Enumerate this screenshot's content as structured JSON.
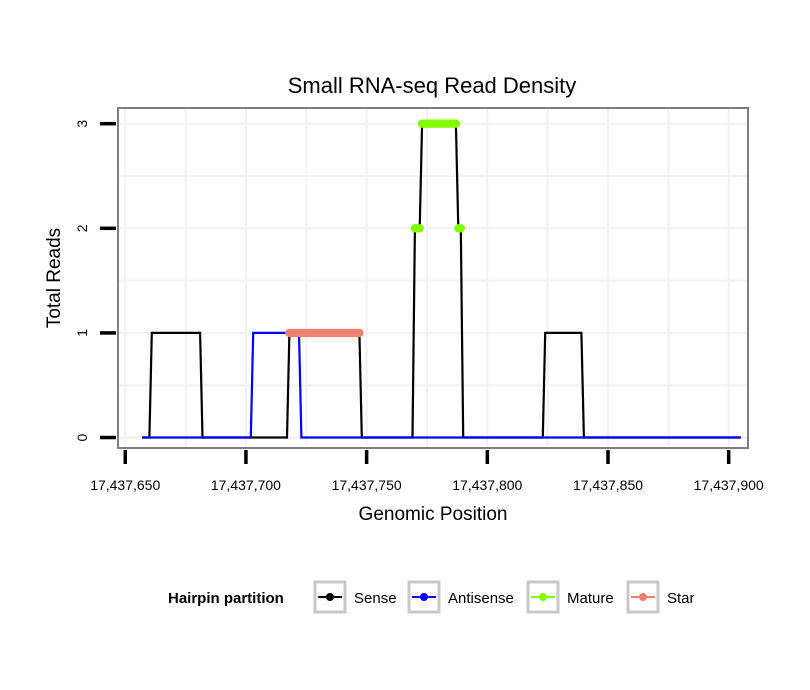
{
  "chart_data": {
    "type": "line",
    "title": "Small RNA-seq Read Density",
    "xlabel": "Genomic Position",
    "ylabel": "Total Reads",
    "xlim": [
      17437647,
      17437908
    ],
    "ylim": [
      -0.1,
      3.15
    ],
    "x_ticks": [
      17437650,
      17437700,
      17437750,
      17437800,
      17437850,
      17437900
    ],
    "x_tick_labels": [
      "17,437,650",
      "17,437,700",
      "17,437,750",
      "17,437,800",
      "17,437,850",
      "17,437,900"
    ],
    "y_ticks": [
      0,
      1,
      2,
      3
    ],
    "y_tick_labels": [
      "0",
      "1",
      "2",
      "3"
    ],
    "grid": true,
    "legend": {
      "title": "Hairpin partition",
      "placement": "bottom",
      "entries": [
        "Sense",
        "Antisense",
        "Mature",
        "Star"
      ]
    },
    "series": [
      {
        "name": "Sense",
        "color": "#000000",
        "style": "line",
        "x": [
          17437657,
          17437660,
          17437661,
          17437681,
          17437682,
          17437717,
          17437718,
          17437722,
          17437723,
          17437747,
          17437748,
          17437769,
          17437770,
          17437772,
          17437773,
          17437787,
          17437788,
          17437789,
          17437790,
          17437823,
          17437824,
          17437839,
          17437840,
          17437905
        ],
        "y": [
          0,
          0,
          1,
          1,
          0,
          0,
          1,
          1,
          1,
          1,
          0,
          0,
          2,
          2,
          3,
          3,
          2,
          2,
          0,
          0,
          1,
          1,
          0,
          0
        ]
      },
      {
        "name": "Antisense",
        "color": "#0000ff",
        "style": "line",
        "x": [
          17437657,
          17437702,
          17437703,
          17437722,
          17437723,
          17437905
        ],
        "y": [
          0,
          0,
          1,
          1,
          0,
          0
        ]
      },
      {
        "name": "Mature",
        "color": "#7fff00",
        "style": "points",
        "segments": [
          {
            "x": [
              17437770,
              17437772
            ],
            "y": 2
          },
          {
            "x": [
              17437773,
              17437787
            ],
            "y": 3
          },
          {
            "x": [
              17437788,
              17437789
            ],
            "y": 2
          }
        ]
      },
      {
        "name": "Star",
        "color": "#f08070",
        "style": "points",
        "segments": [
          {
            "x": [
              17437718,
              17437747
            ],
            "y": 1
          }
        ]
      }
    ]
  }
}
